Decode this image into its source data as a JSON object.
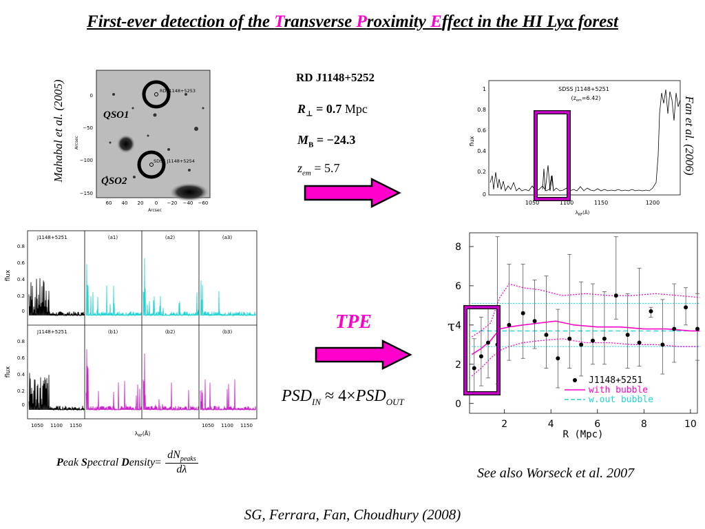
{
  "title": {
    "prefix": "First-ever detection of the ",
    "letter_t": "T",
    "word_t": "ransverse ",
    "letter_p": "P",
    "word_p": "roximity ",
    "letter_e": "E",
    "suffix": "ffect in the HI Lyα forest"
  },
  "image_panel": {
    "credit": "Mahabal et al. (2005)",
    "qso1": "QSO1",
    "qso2": "QSO2",
    "label_top": "RD J1148+5253",
    "label_bottom": "SDSS J1148+5254",
    "y_axis_label": "Arcsec",
    "x_axis_label": "Arcsec",
    "y_ticks": [
      "0",
      "−50",
      "−100",
      "−150"
    ],
    "x_ticks": [
      "60",
      "40",
      "20",
      "0",
      "−20",
      "−40",
      "−60"
    ]
  },
  "object_info": {
    "name": "RD J1148+5252",
    "r_perp_label": "R",
    "r_perp_sub": "⊥",
    "r_perp_eq": "= 0.7",
    "r_perp_unit": "Mpc",
    "mb_label": "M",
    "mb_sub": "B",
    "mb_eq": "= −24.3",
    "zem_label": "z",
    "zem_sub": "em",
    "zem_eq": "= 5.7"
  },
  "spectrum_panel": {
    "credit": "Fan et al. (2006)",
    "label": "SDSS J1148+5251",
    "zem": "(z",
    "zem_sub": "em",
    "zem_val": "=6.42)",
    "ylabel": "flux",
    "xlabel": "λ",
    "xlabel_sub": "RF",
    "xlabel_unit": "(Å)",
    "y_ticks": [
      "1",
      "0.8",
      "0.6",
      "0.4",
      "0.2",
      "0"
    ],
    "x_ticks": [
      "1050",
      "1100",
      "1150",
      "1200"
    ]
  },
  "grid_panel": {
    "ylabel": "flux",
    "xlabel": "λ",
    "xlabel_sub": "RF",
    "xlabel_unit": "(Å)",
    "labels_top": [
      "J1148+5251",
      "(a1)",
      "(a2)",
      "(a3)"
    ],
    "labels_bottom": [
      "J1148+5251",
      "(b1)",
      "(b2)",
      "(b3)"
    ],
    "y_ticks": [
      "0.8",
      "0.6",
      "0.4",
      "0.2",
      "0"
    ],
    "x_ticks": [
      "1050",
      "1100",
      "1150",
      "1050",
      "1100",
      "1150"
    ]
  },
  "tpe": {
    "label": "TPE",
    "psd_left": "PSD",
    "psd_left_sub": "IN",
    "psd_rel": "≈ 4×",
    "psd_right": "PSD",
    "psd_right_sub": "OUT"
  },
  "formula": {
    "w1_cap": "P",
    "w1_rest": "eak ",
    "w2_cap": "S",
    "w2_rest": "pectral ",
    "w3_cap": "D",
    "w3_rest": "ensity",
    "eq": "=",
    "num": "dN",
    "num_sub": "peaks",
    "den": "dλ"
  },
  "see_also": "See also Worseck et al. 2007",
  "citation": "SG, Ferrara, Fan, Choudhury  (2008)",
  "tau_chart": {
    "ylabel": "τ",
    "xlabel": "R (Mpc)",
    "y_ticks": [
      "0",
      "2",
      "4",
      "6",
      "8"
    ],
    "x_ticks": [
      "2",
      "4",
      "6",
      "8",
      "10"
    ],
    "legend": [
      "J1148+5251",
      "with bubble",
      "w.out bubble"
    ]
  },
  "colors": {
    "magenta": "#ff00cc",
    "cyan": "#22d3d3",
    "box_magenta": "#cc00cc"
  },
  "chart_data": {
    "type": "scatter",
    "title": "",
    "xlabel": "R (Mpc)",
    "ylabel": "τ",
    "xlim": [
      0.5,
      10.3
    ],
    "ylim": [
      -0.5,
      8.7
    ],
    "series": [
      {
        "name": "J1148+5251",
        "x": [
          0.7,
          1.0,
          1.3,
          1.7,
          2.2,
          2.8,
          3.3,
          3.8,
          4.3,
          4.8,
          5.3,
          5.8,
          6.3,
          6.8,
          7.3,
          7.8,
          8.3,
          8.8,
          9.3,
          9.8,
          10.3
        ],
        "y": [
          1.8,
          2.4,
          3.1,
          3.0,
          4.0,
          4.6,
          4.2,
          3.5,
          2.3,
          3.3,
          3.0,
          3.2,
          3.3,
          5.5,
          3.5,
          3.1,
          4.7,
          3.0,
          3.8,
          4.9,
          3.8
        ],
        "yerr_low": [
          1.3,
          1.5,
          1.8,
          2.0,
          1.8,
          2.3,
          1.4,
          1.7,
          1.5,
          1.5,
          1.6,
          1.2,
          1.3,
          1.2,
          1.7,
          1.2,
          0.3,
          1.5,
          1.7,
          0.9,
          1.6
        ],
        "yerr_high": [
          1.5,
          2.0,
          1.9,
          5.5,
          3.1,
          2.5,
          2.1,
          3.0,
          2.5,
          4.3,
          3.2,
          2.9,
          2.4,
          3.0,
          2.1,
          3.8,
          0.2,
          2.3,
          2.3,
          1.0,
          1.8
        ]
      },
      {
        "name": "with bubble",
        "x": [
          0.6,
          1.0,
          1.4,
          1.8,
          2.2,
          2.8,
          3.5,
          4.2,
          5.0,
          6.0,
          7.0,
          8.0,
          9.0,
          10.0,
          10.4
        ],
        "y": [
          2.5,
          2.8,
          3.2,
          3.8,
          3.9,
          4.0,
          4.1,
          4.2,
          4.0,
          3.9,
          3.9,
          3.8,
          3.8,
          3.7,
          3.7
        ]
      },
      {
        "name": "with bubble upper",
        "x": [
          0.6,
          1.0,
          1.4,
          1.8,
          2.2,
          2.8,
          3.5,
          4.5,
          5.5,
          6.5,
          7.5,
          8.5,
          9.5,
          10.4
        ],
        "y": [
          3.4,
          3.7,
          4.1,
          5.4,
          6.1,
          5.9,
          5.8,
          5.5,
          5.6,
          5.5,
          5.5,
          5.6,
          5.5,
          5.4
        ]
      },
      {
        "name": "with bubble lower",
        "x": [
          0.6,
          1.0,
          1.4,
          1.8,
          2.2,
          2.8,
          3.5,
          4.5,
          5.5,
          6.5,
          7.5,
          8.5,
          9.5,
          10.4
        ],
        "y": [
          1.4,
          1.8,
          2.3,
          2.7,
          2.9,
          3.1,
          3.2,
          3.3,
          3.1,
          3.1,
          3.0,
          3.0,
          2.9,
          2.9
        ]
      },
      {
        "name": "w.out bubble",
        "x": [
          0.6,
          10.4
        ],
        "y": [
          3.7,
          3.7
        ]
      },
      {
        "name": "w.out bubble upper",
        "x": [
          0.6,
          10.4
        ],
        "y": [
          5.1,
          5.1
        ]
      },
      {
        "name": "w.out bubble lower",
        "x": [
          0.6,
          10.4
        ],
        "y": [
          2.9,
          2.9
        ]
      }
    ]
  }
}
